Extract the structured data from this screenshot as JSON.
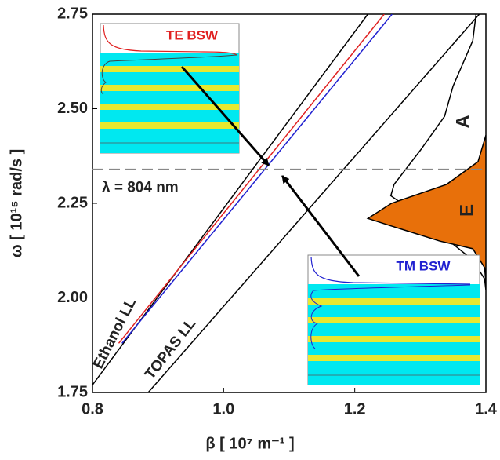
{
  "chart_data": {
    "type": "line",
    "x_label": "β [ 10⁷ m⁻¹ ]",
    "y_label": "ω [ 10¹⁵ rad/s ]",
    "xlim": [
      0.8,
      1.4
    ],
    "ylim": [
      1.75,
      2.75
    ],
    "xticks": [
      0.8,
      {
        "value": 1,
        "label": "1.0"
      },
      1.2,
      1.4
    ],
    "yticks": [
      1.75,
      {
        "value": 2,
        "label": "2.00"
      },
      2.25,
      {
        "value": 2.5,
        "label": "2.50"
      },
      2.75
    ],
    "series": [
      {
        "name": "Ethanol LL",
        "color": "#000000",
        "x": [
          0.8,
          1.22
        ],
        "values": [
          1.77,
          2.75
        ]
      },
      {
        "color": "#e02020",
        "x": [
          0.84,
          1.245
        ],
        "values": [
          1.88,
          2.75
        ]
      },
      {
        "color": "#2020d0",
        "x": [
          0.845,
          1.257
        ],
        "values": [
          1.88,
          2.75
        ]
      },
      {
        "name": "TOPAS LL",
        "color": "#000000",
        "x": [
          0.885,
          1.39
        ],
        "values": [
          1.75,
          2.75
        ]
      },
      {
        "name": "A",
        "color": "#000000",
        "x": [
          1.385,
          1.38,
          1.35,
          1.337,
          1.3,
          1.26,
          1.255,
          1.28,
          1.33,
          1.38,
          1.398,
          1.4
        ],
        "values": [
          2.75,
          2.68,
          2.56,
          2.48,
          2.39,
          2.3,
          2.27,
          2.24,
          2.17,
          2.1,
          2.05,
          2.02
        ]
      },
      {
        "name": "E",
        "color": "#e8700a",
        "fill": true,
        "x": [
          1.4,
          1.388,
          1.34,
          1.256,
          1.22,
          1.256,
          1.33,
          1.38,
          1.398,
          1.4
        ],
        "values": [
          2.43,
          2.36,
          2.3,
          2.25,
          2.21,
          2.19,
          2.15,
          2.13,
          2.08,
          2.04
        ]
      }
    ],
    "reference_line": {
      "value": 2.34,
      "label": "λ = 804 nm"
    },
    "insets": [
      {
        "label": "TE BSW",
        "color": "#e02020"
      },
      {
        "label": "TM BSW",
        "color": "#2020d0"
      }
    ]
  }
}
